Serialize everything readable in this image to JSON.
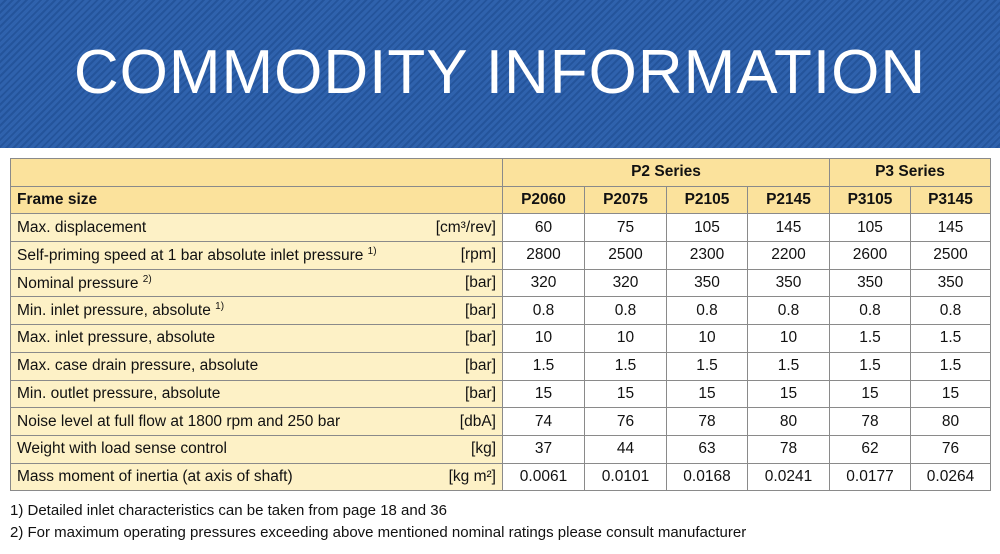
{
  "header": {
    "title": "COMMODITY INFORMATION"
  },
  "table": {
    "group_headers": [
      "P2 Series",
      "P3 Series"
    ],
    "frame_label": "Frame size",
    "models": [
      "P2060",
      "P2075",
      "P2105",
      "P2145",
      "P3105",
      "P3145"
    ],
    "rows": [
      {
        "label": "Max. displacement",
        "unit": "[cm³/rev]",
        "values": [
          60,
          75,
          105,
          145,
          105,
          145
        ]
      },
      {
        "label": "Self-priming speed at 1 bar absolute inlet pressure",
        "note": "1)",
        "unit": "[rpm]",
        "values": [
          2800,
          2500,
          2300,
          2200,
          2600,
          2500
        ]
      },
      {
        "label": "Nominal pressure",
        "note": "2)",
        "unit": "[bar]",
        "values": [
          320,
          320,
          350,
          350,
          350,
          350
        ]
      },
      {
        "label": "Min. inlet pressure, absolute",
        "note": "1)",
        "unit": "[bar]",
        "values": [
          0.8,
          0.8,
          0.8,
          0.8,
          0.8,
          0.8
        ]
      },
      {
        "label": "Max. inlet pressure, absolute",
        "unit": "[bar]",
        "values": [
          10,
          10,
          10,
          10,
          1.5,
          1.5
        ]
      },
      {
        "label": "Max. case drain pressure, absolute",
        "unit": "[bar]",
        "values": [
          1.5,
          1.5,
          1.5,
          1.5,
          1.5,
          1.5
        ]
      },
      {
        "label": "Min. outlet pressure, absolute",
        "unit": "[bar]",
        "values": [
          15,
          15,
          15,
          15,
          15,
          15
        ]
      },
      {
        "label": "Noise level at full flow at 1800 rpm and 250 bar",
        "unit": "[dbA]",
        "values": [
          74,
          76,
          78,
          80,
          78,
          80
        ]
      },
      {
        "label": "Weight with load sense control",
        "unit": "[kg]",
        "values": [
          37,
          44,
          63,
          78,
          62,
          76
        ]
      },
      {
        "label": "Mass moment of inertia (at axis of shaft)",
        "unit": "[kg m²]",
        "values": [
          0.0061,
          0.0101,
          0.0168,
          0.0241,
          0.0177,
          0.0264
        ]
      }
    ]
  },
  "footnotes": [
    "1) Detailed inlet characteristics can be taken from page 18 and 36",
    "2) For maximum operating pressures exceeding above mentioned nominal ratings please consult manufacturer"
  ]
}
